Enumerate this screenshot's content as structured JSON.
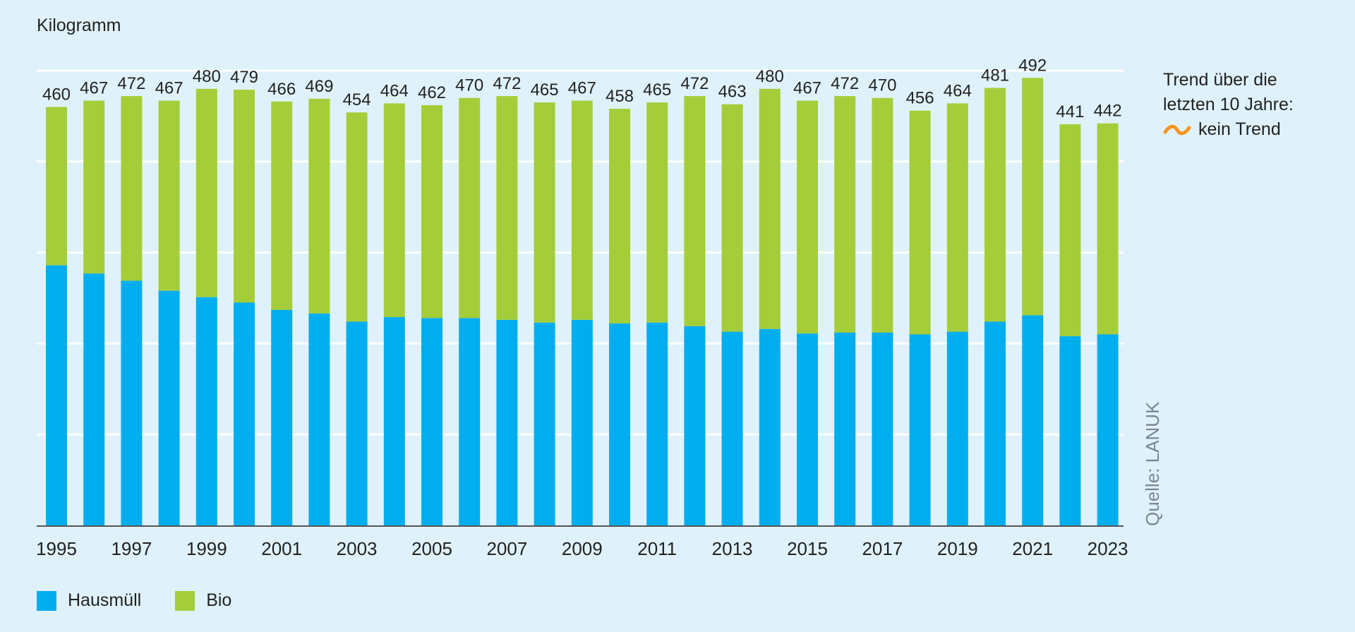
{
  "chart_data": {
    "type": "bar",
    "stacked": true,
    "y_unit_label": "Kilogramm",
    "ylim": [
      0,
      500
    ],
    "grid": true,
    "categories": [
      "1995",
      "1996",
      "1997",
      "1998",
      "1999",
      "2000",
      "2001",
      "2002",
      "2003",
      "2004",
      "2005",
      "2006",
      "2007",
      "2008",
      "2009",
      "2010",
      "2011",
      "2012",
      "2013",
      "2014",
      "2015",
      "2016",
      "2017",
      "2018",
      "2019",
      "2020",
      "2021",
      "2022",
      "2023"
    ],
    "x_tick_labels": [
      "1995",
      "1997",
      "1999",
      "2001",
      "2003",
      "2005",
      "2007",
      "2009",
      "2011",
      "2013",
      "2015",
      "2017",
      "2019",
      "2021",
      "2023"
    ],
    "series": [
      {
        "name": "Hausmüll",
        "color": "#00aeef",
        "values": [
          286,
          277,
          269,
          258,
          251,
          245,
          237,
          233,
          224,
          229,
          228,
          228,
          226,
          223,
          226,
          222,
          223,
          219,
          213,
          216,
          211,
          212,
          212,
          210,
          213,
          224,
          231,
          208,
          210
        ]
      },
      {
        "name": "Bio",
        "color": "#a5cd39",
        "values": [
          174,
          190,
          203,
          209,
          229,
          234,
          229,
          236,
          230,
          235,
          234,
          242,
          246,
          242,
          241,
          236,
          242,
          253,
          250,
          264,
          256,
          260,
          258,
          246,
          251,
          257,
          261,
          233,
          232
        ]
      }
    ],
    "totals": [
      460,
      467,
      472,
      467,
      480,
      479,
      466,
      469,
      454,
      464,
      462,
      470,
      472,
      465,
      467,
      458,
      465,
      472,
      463,
      480,
      467,
      472,
      470,
      456,
      464,
      481,
      492,
      441,
      442
    ]
  },
  "legend": [
    {
      "label": "Hausmüll",
      "color": "#00aeef"
    },
    {
      "label": "Bio",
      "color": "#a5cd39"
    }
  ],
  "trend": {
    "line1": "Trend über die",
    "line2": "letzten 10 Jahre:",
    "value": "kein Trend",
    "icon": "tilde-icon",
    "color": "#f7941d"
  },
  "source": "Quelle: LANUK"
}
